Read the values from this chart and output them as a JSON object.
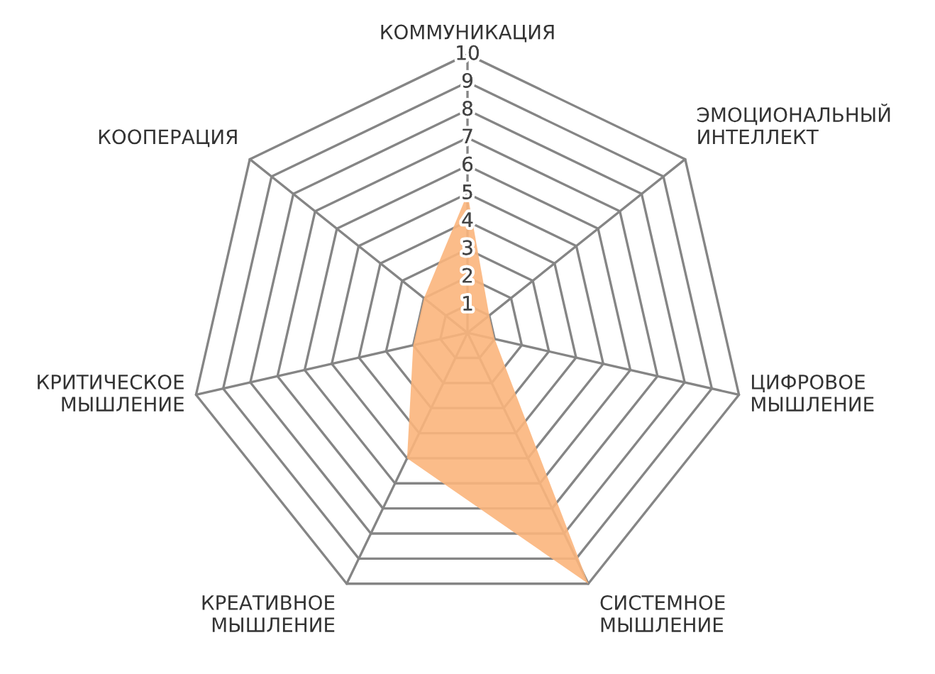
{
  "chart_data": {
    "type": "radar",
    "categories": [
      "КОММУНИКАЦИЯ",
      "ЭМОЦИОНАЛЬНЫЙ\nИНТЕЛЛЕКТ",
      "ЦИФРОВОЕ\nМЫШЛЕНИЕ",
      "СИСТЕМНОЕ\nМЫШЛЕНИЕ",
      "КРЕАТИВНОЕ\nМЫШЛЕНИЕ",
      "КРИТИЧЕСКОЕ\nМЫШЛЕНИЕ",
      "КООПЕРАЦИЯ"
    ],
    "series": [
      {
        "color": "#fbb57c",
        "values": [
          5,
          1,
          1,
          10,
          5,
          2,
          2
        ]
      }
    ],
    "ylim": [
      0,
      10
    ],
    "yticks": [
      1,
      2,
      3,
      4,
      5,
      6,
      7,
      8,
      9,
      10
    ],
    "grid": true
  }
}
